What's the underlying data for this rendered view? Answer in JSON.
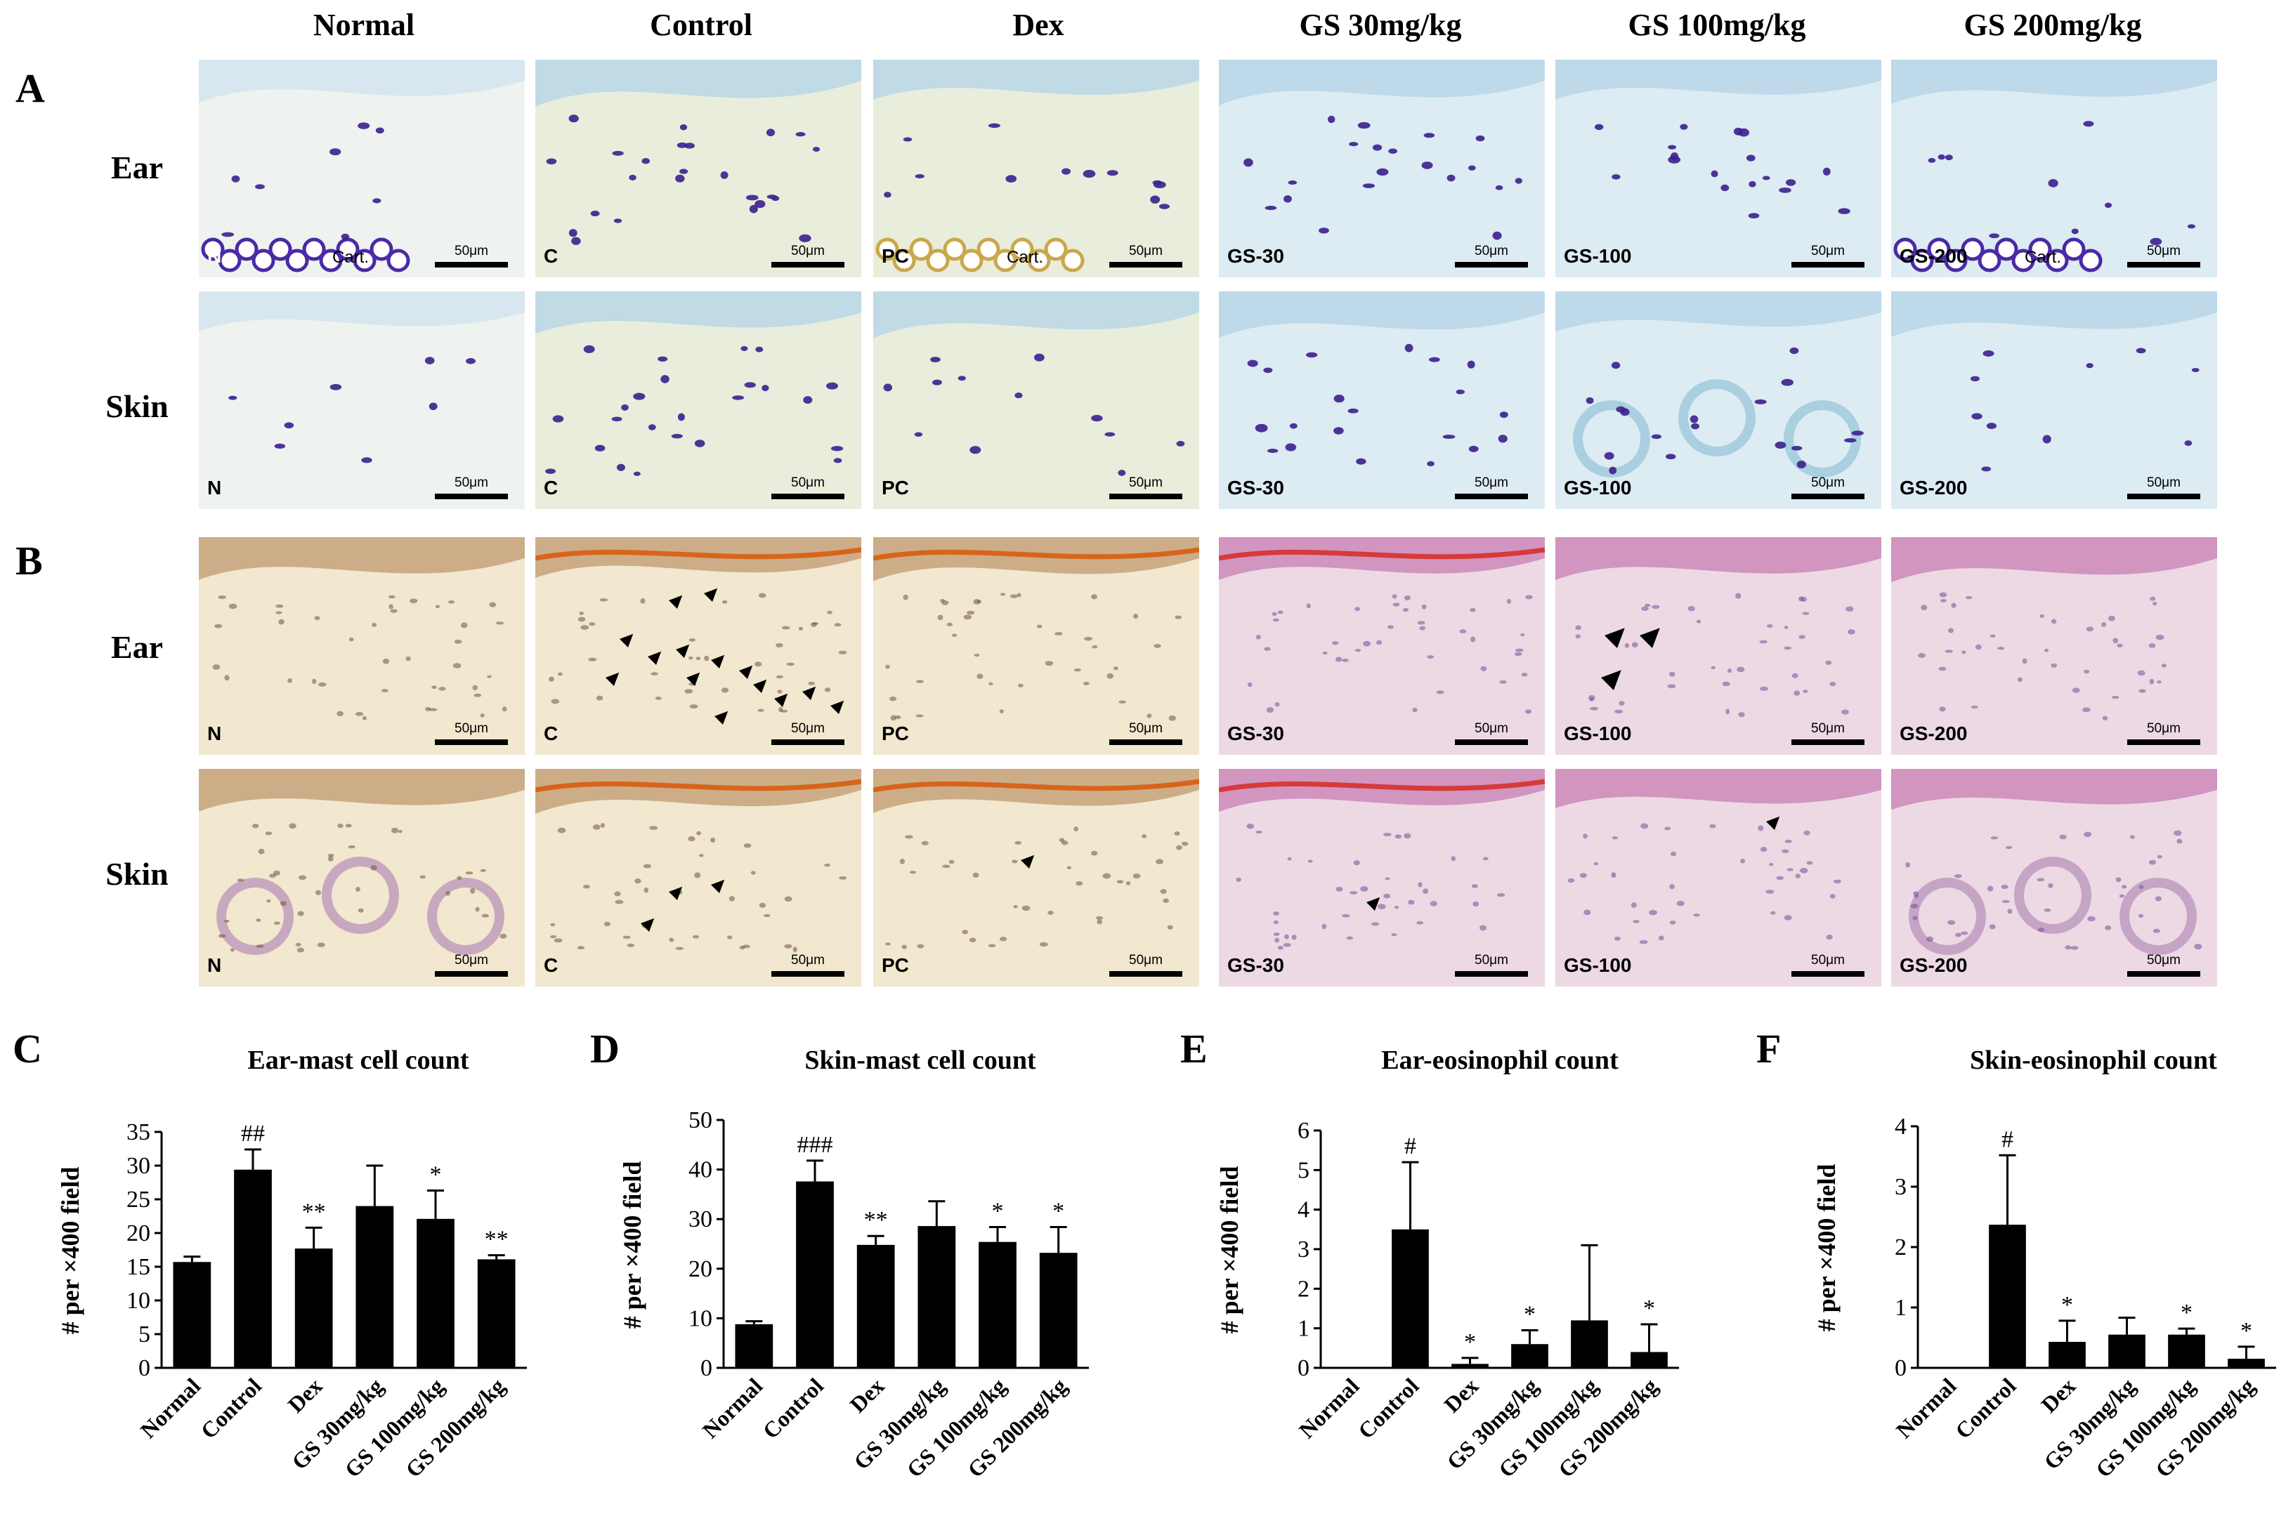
{
  "columns": [
    "Normal",
    "Control",
    "Dex",
    "GS 30mg/kg",
    "GS 100mg/kg",
    "GS 200mg/kg"
  ],
  "panels": {
    "A": {
      "letter": "A",
      "rows": [
        "Ear",
        "Skin"
      ],
      "stain": "toluidine-blue"
    },
    "B": {
      "letter": "B",
      "rows": [
        "Ear",
        "Skin"
      ],
      "stain": "eosinophil"
    }
  },
  "micrograph_codes": [
    "N",
    "C",
    "PC",
    "GS-30",
    "GS-100",
    "GS-200"
  ],
  "scale_bar_label": "50μm",
  "cartilage_label": "Cart.",
  "colors": {
    "toluidine_background": "#dbeaf1",
    "toluidine_mast_cell": "#3b1f8e",
    "tissue_beige": "#f1e6cf",
    "he_pink": "#e6c8dd",
    "bar_fill": "#000000"
  },
  "chart_data": [
    {
      "panel": "C",
      "type": "bar",
      "title": "Ear-mast cell count",
      "categories": [
        "Normal",
        "Control",
        "Dex",
        "GS 30mg/kg",
        "GS 100mg/kg",
        "GS 200mg/kg"
      ],
      "values": [
        15.7,
        29.4,
        17.7,
        24.0,
        22.1,
        16.1
      ],
      "errors": [
        0.8,
        3.0,
        3.1,
        6.0,
        4.2,
        0.6
      ],
      "annotations": [
        "",
        "##",
        "**",
        "",
        "*",
        "**"
      ],
      "ylabel": "# per ×400 field",
      "ylim": [
        0,
        35
      ],
      "yticks": [
        0,
        5,
        10,
        15,
        20,
        25,
        30,
        35
      ]
    },
    {
      "panel": "D",
      "type": "bar",
      "title": "Skin-mast cell count",
      "categories": [
        "Normal",
        "Control",
        "Dex",
        "GS 30mg/kg",
        "GS 100mg/kg",
        "GS 200mg/kg"
      ],
      "values": [
        8.8,
        37.6,
        24.8,
        28.6,
        25.4,
        23.2
      ],
      "errors": [
        0.6,
        4.2,
        1.8,
        5.0,
        3.0,
        5.2
      ],
      "annotations": [
        "",
        "###",
        "**",
        "",
        "*",
        "*"
      ],
      "ylabel": "# per ×400 field",
      "ylim": [
        0,
        50
      ],
      "yticks": [
        0,
        10,
        20,
        30,
        40,
        50
      ]
    },
    {
      "panel": "E",
      "type": "bar",
      "title": "Ear-eosinophil count",
      "categories": [
        "Normal",
        "Control",
        "Dex",
        "GS 30mg/kg",
        "GS 100mg/kg",
        "GS 200mg/kg"
      ],
      "values": [
        0.0,
        3.5,
        0.1,
        0.6,
        1.2,
        0.4
      ],
      "errors": [
        0.0,
        1.7,
        0.15,
        0.35,
        1.9,
        0.7
      ],
      "annotations": [
        "",
        "#",
        "*",
        "*",
        "",
        "*"
      ],
      "ylabel": "# per ×400 field",
      "ylim": [
        0,
        6
      ],
      "yticks": [
        0,
        1,
        2,
        3,
        4,
        5,
        6
      ]
    },
    {
      "panel": "F",
      "type": "bar",
      "title": "Skin-eosinophil count",
      "categories": [
        "Normal",
        "Control",
        "Dex",
        "GS 30mg/kg",
        "GS 100mg/kg",
        "GS 200mg/kg"
      ],
      "values": [
        0.0,
        2.37,
        0.43,
        0.55,
        0.55,
        0.15
      ],
      "errors": [
        0.0,
        1.15,
        0.35,
        0.28,
        0.1,
        0.2
      ],
      "annotations": [
        "",
        "#",
        "*",
        "",
        "*",
        "*"
      ],
      "ylabel": "# per ×400 field",
      "ylim": [
        0,
        4
      ],
      "yticks": [
        0,
        1,
        2,
        3,
        4
      ]
    }
  ]
}
